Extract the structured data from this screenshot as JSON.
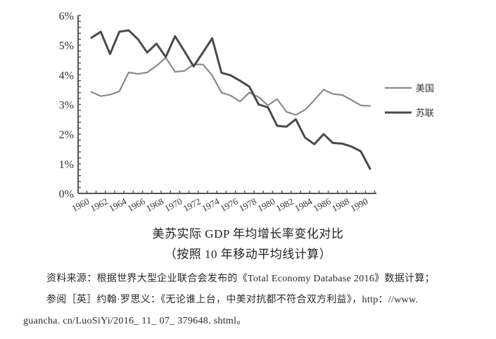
{
  "chart_data": {
    "type": "line",
    "title": "美苏实际 GDP 年均增长率变化对比",
    "subtitle": "（按照 10 年移动平均线计算）",
    "xlabel": "",
    "ylabel": "",
    "ylim": [
      0,
      6
    ],
    "y_ticks": [
      "0%",
      "1%",
      "2%",
      "3%",
      "4%",
      "5%",
      "6%"
    ],
    "x_tick_labels": [
      "1960",
      "1962",
      "1964",
      "1966",
      "1968",
      "1970",
      "1972",
      "1974",
      "1976",
      "1978",
      "1980",
      "1982",
      "1984",
      "1986",
      "1988",
      "1990"
    ],
    "grid": false,
    "legend_position": "right",
    "x": [
      1960,
      1961,
      1962,
      1963,
      1964,
      1965,
      1966,
      1967,
      1968,
      1969,
      1970,
      1971,
      1972,
      1973,
      1974,
      1975,
      1976,
      1977,
      1978,
      1979,
      1980,
      1981,
      1982,
      1983,
      1984,
      1985,
      1986,
      1987,
      1988,
      1989,
      1990
    ],
    "series": [
      {
        "name": "美国",
        "color": "#8a8a8a",
        "values": [
          3.42,
          3.28,
          3.33,
          3.44,
          4.08,
          4.03,
          4.08,
          4.3,
          4.58,
          4.1,
          4.13,
          4.35,
          4.35,
          3.98,
          3.4,
          3.3,
          3.1,
          3.4,
          3.25,
          2.97,
          3.18,
          2.75,
          2.65,
          2.82,
          3.15,
          3.5,
          3.35,
          3.32,
          3.15,
          2.97,
          2.95
        ]
      },
      {
        "name": "苏联",
        "color": "#4a4a4a",
        "values": [
          5.25,
          5.45,
          4.7,
          5.45,
          5.5,
          5.2,
          4.75,
          5.05,
          4.6,
          5.3,
          4.8,
          4.28,
          4.75,
          5.23,
          4.07,
          3.98,
          3.8,
          3.6,
          3.0,
          2.9,
          2.28,
          2.25,
          2.5,
          1.88,
          1.66,
          2.0,
          1.7,
          1.68,
          1.58,
          1.42,
          0.83
        ]
      }
    ]
  },
  "caption": {
    "title": "美苏实际 GDP 年均增长率变化对比",
    "subtitle": "（按照 10 年移动平均线计算）"
  },
  "notes": {
    "line1": "资料来源：根据世界大型企业联合会发布的《Total Economy Database 2016》数据计算；",
    "line2": "参阅［英］约翰·罗思义：《无论谁上台，中美对抗都不符合双方利益》，http：//www.",
    "line3": "guancha. cn/LuoSiYi/2016_ 11_ 07_ 379648. shtml。"
  }
}
